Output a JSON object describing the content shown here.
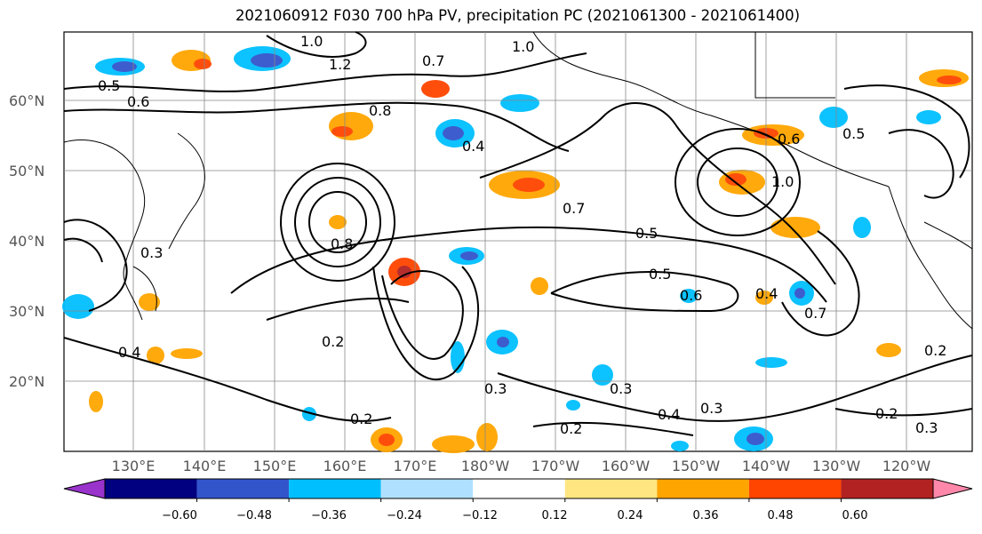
{
  "title": "2021060912 F030 700 hPa PV, precipitation PC (2021061300 - 2021061400)",
  "lat_labels": [
    "60°N",
    "50°N",
    "40°N",
    "30°N",
    "20°N"
  ],
  "lon_labels": [
    "130°E",
    "140°E",
    "150°E",
    "160°E",
    "170°E",
    "180°W",
    "170°W",
    "160°W",
    "150°W",
    "140°W",
    "130°W",
    "120°W"
  ],
  "contour_labels": [
    "1.0",
    "0.7",
    "1.0",
    "0.5",
    "0.6",
    "0.8",
    "0.4",
    "0.3",
    "0.5",
    "0.6",
    "0.8",
    "0.7",
    "0.5",
    "0.5",
    "0.6",
    "0.4",
    "0.7",
    "0.4",
    "0.2",
    "0.2",
    "0.3",
    "0.3",
    "0.4",
    "0.2",
    "0.3",
    "0.2",
    "0.2",
    "0.3",
    "1.2",
    "1.0"
  ],
  "colorbar": {
    "ticks": [
      "−0.60",
      "−0.48",
      "−0.36",
      "−0.24",
      "−0.12",
      "0.12",
      "0.24",
      "0.36",
      "0.48",
      "0.60"
    ],
    "colors": [
      "#9933cc",
      "#000080",
      "#3355cc",
      "#00bfff",
      "#b0e0ff",
      "#ffffff",
      "#ffe680",
      "#ffa500",
      "#ff4500",
      "#b22222",
      "#ff88aa"
    ]
  },
  "map": {
    "lat_range": [
      "10°N",
      "70°N"
    ],
    "lon_range": [
      "120°E",
      "110°W"
    ],
    "field": "700 hPa PV",
    "shading": "precipitation PC"
  }
}
